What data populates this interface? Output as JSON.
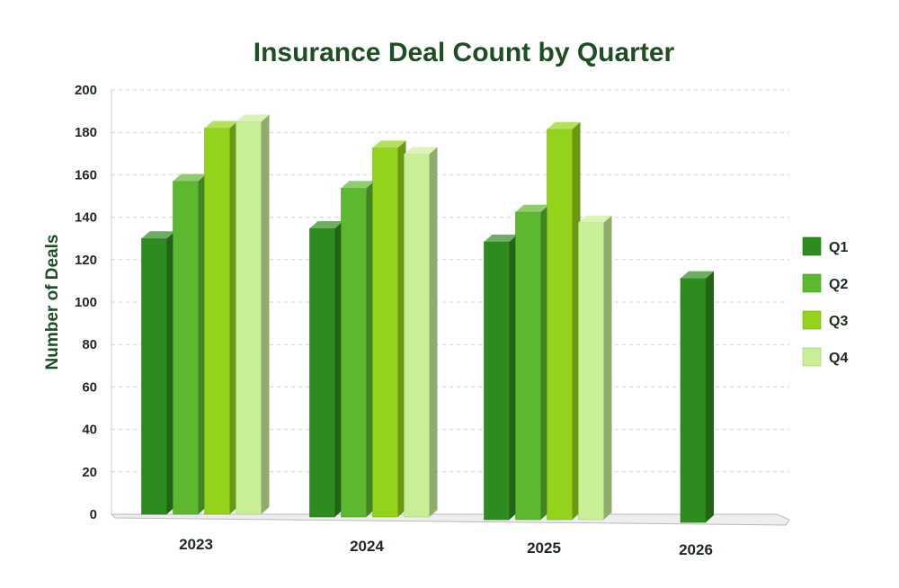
{
  "chart_data": {
    "type": "bar",
    "title": "Insurance Deal Count by Quarter",
    "ylabel": "Number of Deals",
    "xlabel": "",
    "ylim": [
      0,
      200
    ],
    "yticks": [
      0,
      20,
      40,
      60,
      80,
      100,
      120,
      140,
      160,
      180,
      200
    ],
    "categories": [
      "2023",
      "2024",
      "2025",
      "2026"
    ],
    "series": [
      {
        "name": "Q1",
        "color": "#2e8b1f",
        "values": [
          130,
          136,
          131,
          115
        ]
      },
      {
        "name": "Q2",
        "color": "#5cb82e",
        "values": [
          157,
          155,
          145,
          null
        ]
      },
      {
        "name": "Q3",
        "color": "#94d31b",
        "values": [
          182,
          174,
          184,
          null
        ]
      },
      {
        "name": "Q4",
        "color": "#c8ef96",
        "values": [
          185,
          171,
          140,
          null
        ]
      }
    ],
    "grid": true,
    "legend_position": "right",
    "style": "3d-bar"
  }
}
